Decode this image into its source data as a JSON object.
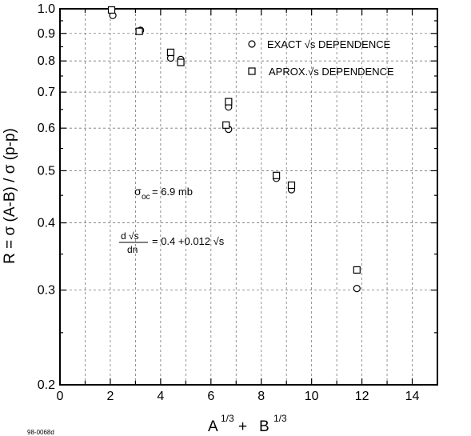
{
  "chart_data": {
    "type": "scatter",
    "xlabel_main": "A",
    "xlabel_exp1": "1/3",
    "xlabel_plus": "+ ",
    "xlabel_b": "B",
    "xlabel_exp2": "1/3",
    "ylabel": "R =  σ (A-B) / σ (p-p)",
    "xlim": [
      0,
      15
    ],
    "ylim": [
      0.2,
      1.0
    ],
    "y_scale": "log",
    "grid": true,
    "x_ticks": [
      "0",
      "2",
      "4",
      "6",
      "8",
      "10",
      "12",
      "14"
    ],
    "x_tick_values": [
      0,
      2,
      4,
      6,
      8,
      10,
      12,
      14
    ],
    "y_ticks": [
      "0.2",
      "0.3",
      "0.4",
      "0.5",
      "0.6",
      "0.7",
      "0.8",
      "0.9",
      "1.0"
    ],
    "y_tick_values": [
      0.2,
      0.3,
      0.4,
      0.5,
      0.6,
      0.7,
      0.8,
      0.9,
      1.0
    ],
    "series": [
      {
        "name": "EXACT √s DEPENDENCE",
        "marker": "circle",
        "points": [
          {
            "x": 2.1,
            "y": 0.972
          },
          {
            "x": 3.2,
            "y": 0.912
          },
          {
            "x": 4.4,
            "y": 0.81
          },
          {
            "x": 4.8,
            "y": 0.805
          },
          {
            "x": 6.7,
            "y": 0.657
          },
          {
            "x": 6.7,
            "y": 0.597
          },
          {
            "x": 8.6,
            "y": 0.484
          },
          {
            "x": 9.2,
            "y": 0.461
          },
          {
            "x": 11.8,
            "y": 0.302
          }
        ]
      },
      {
        "name": "APROX.√s DEPENDENCE",
        "marker": "square",
        "points": [
          {
            "x": 2.05,
            "y": 0.995
          },
          {
            "x": 3.15,
            "y": 0.908
          },
          {
            "x": 4.4,
            "y": 0.83
          },
          {
            "x": 4.8,
            "y": 0.795
          },
          {
            "x": 6.7,
            "y": 0.672
          },
          {
            "x": 6.6,
            "y": 0.608
          },
          {
            "x": 8.6,
            "y": 0.49
          },
          {
            "x": 9.2,
            "y": 0.47
          },
          {
            "x": 11.8,
            "y": 0.327
          }
        ]
      }
    ],
    "legend_placement": "top-right",
    "annotations": {
      "sigma_symbol": "σ",
      "sigma_sub": "oc",
      "sigma_value": "= 6.9 mb",
      "frac_num": "d √s",
      "frac_den": "dn",
      "frac_rhs": "= 0.4 +0.012 √s"
    }
  },
  "corner_label": "98-0068d"
}
